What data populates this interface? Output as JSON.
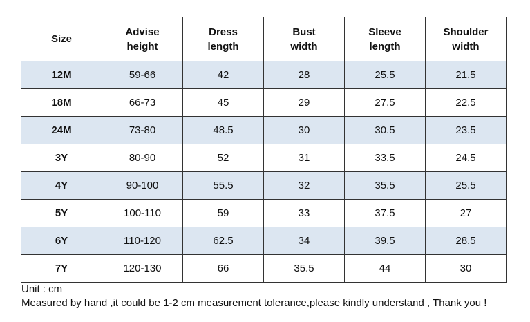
{
  "table": {
    "header": [
      [
        "Size"
      ],
      [
        "Advise",
        "height"
      ],
      [
        "Dress",
        "length"
      ],
      [
        "Bust",
        "width"
      ],
      [
        "Sleeve",
        "length"
      ],
      [
        "Shoulder",
        "width"
      ]
    ],
    "rows": [
      [
        "12M",
        "59-66",
        "42",
        "28",
        "25.5",
        "21.5"
      ],
      [
        "18M",
        "66-73",
        "45",
        "29",
        "27.5",
        "22.5"
      ],
      [
        "24M",
        "73-80",
        "48.5",
        "30",
        "30.5",
        "23.5"
      ],
      [
        "3Y",
        "80-90",
        "52",
        "31",
        "33.5",
        "24.5"
      ],
      [
        "4Y",
        "90-100",
        "55.5",
        "32",
        "35.5",
        "25.5"
      ],
      [
        "5Y",
        "100-110",
        "59",
        "33",
        "37.5",
        "27"
      ],
      [
        "6Y",
        "110-120",
        "62.5",
        "34",
        "39.5",
        "28.5"
      ],
      [
        "7Y",
        "120-130",
        "66",
        "35.5",
        "44",
        "30"
      ]
    ]
  },
  "notes": [
    "Unit : cm",
    "Measured by hand ,it could be 1-2 cm measurement tolerance,please kindly understand , Thank you !"
  ]
}
